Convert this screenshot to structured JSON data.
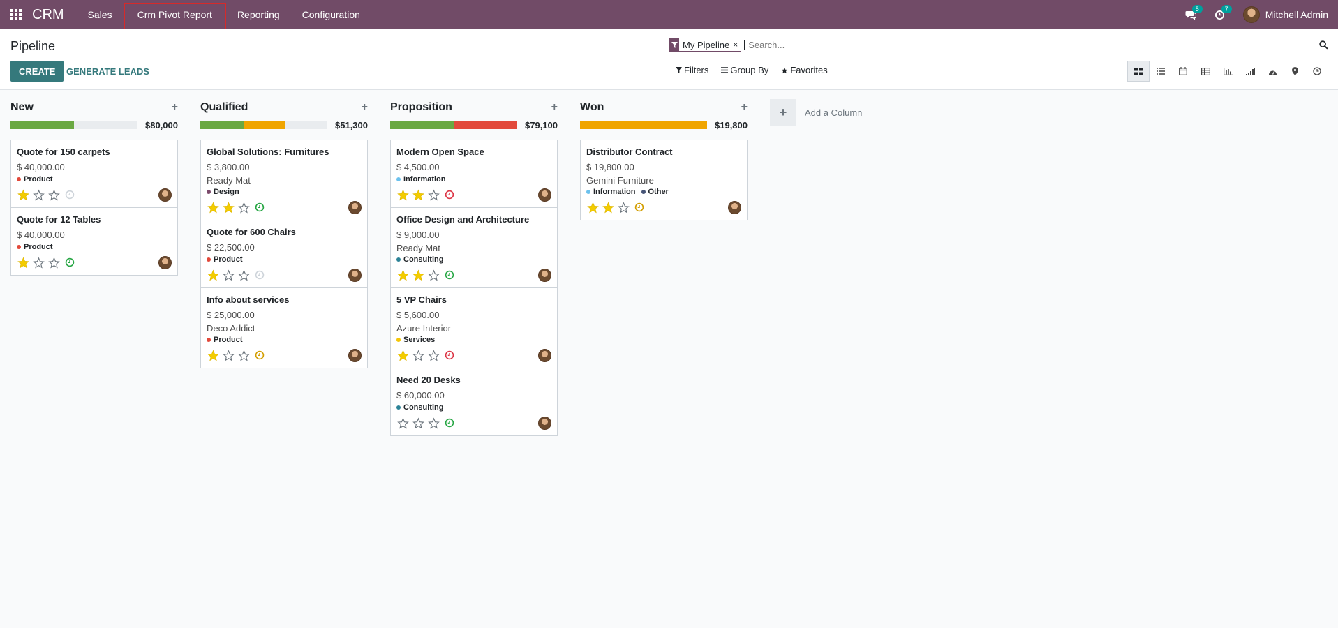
{
  "navbar": {
    "brand": "CRM",
    "menu": [
      "Sales",
      "Crm Pivot Report",
      "Reporting",
      "Configuration"
    ],
    "messages_count": "5",
    "activities_count": "7",
    "user": "Mitchell Admin"
  },
  "control": {
    "title": "Pipeline",
    "create_label": "CREATE",
    "generate_leads_label": "GENERATE LEADS",
    "facet_label": "My Pipeline",
    "facet_close": "×",
    "search_placeholder": "Search...",
    "filters_label": "Filters",
    "group_by_label": "Group By",
    "favorites_label": "Favorites",
    "views": [
      "kanban-icon",
      "list-icon",
      "calendar-icon",
      "pivot-icon",
      "graph-icon",
      "cohort-icon",
      "dashboard-icon",
      "map-icon",
      "activity-icon"
    ]
  },
  "colors": {
    "brand": "#714b67",
    "accent": "#35797c",
    "green": "#6aa842",
    "orange": "#f0a500",
    "red": "#e2493b"
  },
  "columns": [
    {
      "title": "New",
      "total": "$80,000",
      "progress": [
        {
          "color": "#6aa842",
          "pct": 50
        }
      ],
      "cards": [
        {
          "name": "Quote for 150 carpets",
          "amount": "$ 40,000.00",
          "partner": "",
          "tags": [
            {
              "label": "Product",
              "color": "#e2493b"
            }
          ],
          "stars": 1,
          "activity": "none"
        },
        {
          "name": "Quote for 12 Tables",
          "amount": "$ 40,000.00",
          "partner": "",
          "tags": [
            {
              "label": "Product",
              "color": "#e2493b"
            }
          ],
          "stars": 1,
          "activity": "green"
        }
      ]
    },
    {
      "title": "Qualified",
      "total": "$51,300",
      "progress": [
        {
          "color": "#6aa842",
          "pct": 34
        },
        {
          "color": "#f0a500",
          "pct": 33
        }
      ],
      "cards": [
        {
          "name": "Global Solutions: Furnitures",
          "amount": "$ 3,800.00",
          "partner": "Ready Mat",
          "tags": [
            {
              "label": "Design",
              "color": "#7b4a6b"
            }
          ],
          "stars": 2,
          "activity": "green"
        },
        {
          "name": "Quote for 600 Chairs",
          "amount": "$ 22,500.00",
          "partner": "",
          "tags": [
            {
              "label": "Product",
              "color": "#e2493b"
            }
          ],
          "stars": 1,
          "activity": "none"
        },
        {
          "name": "Info about services",
          "amount": "$ 25,000.00",
          "partner": "Deco Addict",
          "tags": [
            {
              "label": "Product",
              "color": "#e2493b"
            }
          ],
          "stars": 1,
          "activity": "orange"
        }
      ]
    },
    {
      "title": "Proposition",
      "total": "$79,100",
      "progress": [
        {
          "color": "#6aa842",
          "pct": 50
        },
        {
          "color": "#e2493b",
          "pct": 50
        }
      ],
      "cards": [
        {
          "name": "Modern Open Space",
          "amount": "$ 4,500.00",
          "partner": "",
          "tags": [
            {
              "label": "Information",
              "color": "#6cc1ed"
            }
          ],
          "stars": 2,
          "activity": "red"
        },
        {
          "name": "Office Design and Architecture",
          "amount": "$ 9,000.00",
          "partner": "Ready Mat",
          "tags": [
            {
              "label": "Consulting",
              "color": "#2c8397"
            }
          ],
          "stars": 2,
          "activity": "green"
        },
        {
          "name": "5 VP Chairs",
          "amount": "$ 5,600.00",
          "partner": "Azure Interior",
          "tags": [
            {
              "label": "Services",
              "color": "#f4c609"
            }
          ],
          "stars": 1,
          "activity": "red"
        },
        {
          "name": "Need 20 Desks",
          "amount": "$ 60,000.00",
          "partner": "",
          "tags": [
            {
              "label": "Consulting",
              "color": "#2c8397"
            }
          ],
          "stars": 0,
          "activity": "green"
        }
      ]
    },
    {
      "title": "Won",
      "total": "$19,800",
      "progress": [
        {
          "color": "#f0a500",
          "pct": 100
        }
      ],
      "cards": [
        {
          "name": "Distributor Contract",
          "amount": "$ 19,800.00",
          "partner": "Gemini Furniture",
          "tags": [
            {
              "label": "Information",
              "color": "#6cc1ed"
            },
            {
              "label": "Other",
              "color": "#475577"
            }
          ],
          "stars": 2,
          "activity": "orange"
        }
      ]
    }
  ],
  "add_column_label": "Add a Column"
}
